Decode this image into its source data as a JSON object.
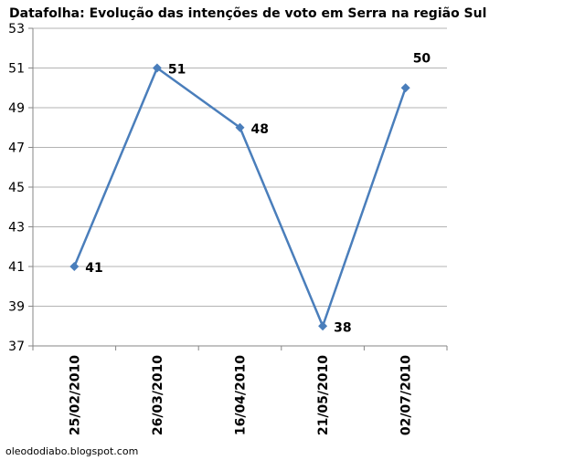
{
  "chart_data": {
    "type": "line",
    "title": "Datafolha: Evolução das intenções de voto em Serra na região Sul",
    "xlabel": "",
    "ylabel": "",
    "categories": [
      "25/02/2010",
      "26/03/2010",
      "16/04/2010",
      "21/05/2010",
      "02/07/2010"
    ],
    "series": [
      {
        "values": [
          41,
          51,
          48,
          38,
          50
        ],
        "color": "#4a7ebb"
      }
    ],
    "data_labels": [
      "41",
      "51",
      "48",
      "38",
      "50"
    ],
    "ylim": [
      37,
      53
    ],
    "yticks": [
      37,
      39,
      41,
      43,
      45,
      47,
      49,
      51,
      53
    ],
    "grid": true,
    "legend": "none"
  },
  "credit": "oleododiabo.blogspot.com",
  "colors": {
    "line": "#4a7ebb",
    "grid": "#b3b3b3",
    "axis": "#868686"
  }
}
